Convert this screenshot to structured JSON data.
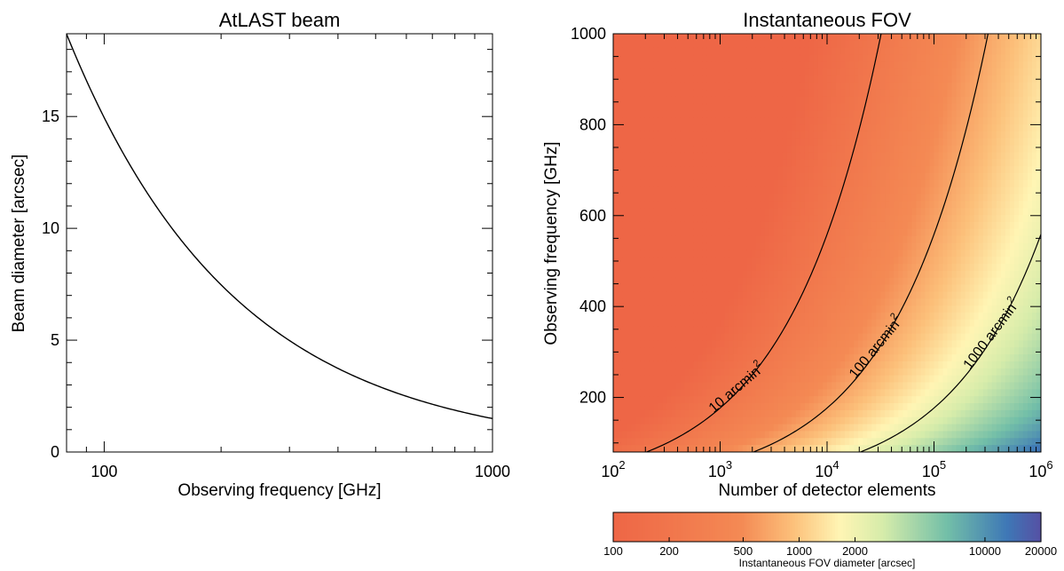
{
  "chart_data": [
    {
      "type": "line",
      "title": "AtLAST beam",
      "xlabel": "Observing frequency [GHz]",
      "ylabel": "Beam diameter [arcsec]",
      "x_scale": "log",
      "xlim": [
        80,
        1000
      ],
      "ylim": [
        0,
        18.7
      ],
      "x_ticks": [
        100,
        1000
      ],
      "x_tick_labels": [
        "100",
        "1000"
      ],
      "y_ticks": [
        0,
        5,
        10,
        15
      ],
      "y_tick_labels": [
        "0",
        "5",
        "10",
        "15"
      ],
      "grid": false,
      "series": [
        {
          "x": [
            80,
            100,
            150,
            200,
            250,
            300,
            400,
            500,
            600,
            700,
            800,
            900,
            1000
          ],
          "y": [
            18.7,
            14.95,
            9.97,
            7.48,
            5.98,
            4.99,
            3.74,
            2.99,
            2.49,
            2.14,
            1.87,
            1.66,
            1.5
          ]
        }
      ]
    },
    {
      "type": "heatmap",
      "title": "Instantaneous FOV",
      "xlabel": "Number of detector elements",
      "ylabel": "Observing frequency [GHz]",
      "x_scale": "log",
      "xlim": [
        100,
        1000000
      ],
      "ylim": [
        80,
        1000
      ],
      "x_ticks": [
        100,
        1000,
        10000,
        100000,
        1000000
      ],
      "x_tick_labels": [
        {
          "base": "10",
          "exp": "2"
        },
        {
          "base": "10",
          "exp": "3"
        },
        {
          "base": "10",
          "exp": "4"
        },
        {
          "base": "10",
          "exp": "5"
        },
        {
          "base": "10",
          "exp": "6"
        }
      ],
      "y_ticks": [
        200,
        400,
        600,
        800,
        1000
      ],
      "y_tick_labels": [
        "200",
        "400",
        "600",
        "800",
        "1000"
      ],
      "contours": [
        {
          "label": "10 arcmin",
          "exp": "2",
          "area_arcmin2": 10
        },
        {
          "label": "100 arcmin",
          "exp": "2",
          "area_arcmin2": 100
        },
        {
          "label": "1000 arcmin",
          "exp": "2",
          "area_arcmin2": 1000
        }
      ],
      "colorbar": {
        "label": "Instantaneous FOV diameter [arcsec]",
        "scale": "log",
        "range": [
          100,
          20000
        ],
        "ticks": [
          100,
          200,
          500,
          1000,
          2000,
          10000,
          20000
        ],
        "tick_labels": [
          "100",
          "200",
          "500",
          "1000",
          "2000",
          "10000",
          "20000"
        ]
      },
      "colors": [
        "#ee6646",
        "#f48a54",
        "#fcc07a",
        "#fff5b4",
        "#d6ecaa",
        "#73bfa8",
        "#3e78b6",
        "#5650a4"
      ]
    }
  ]
}
